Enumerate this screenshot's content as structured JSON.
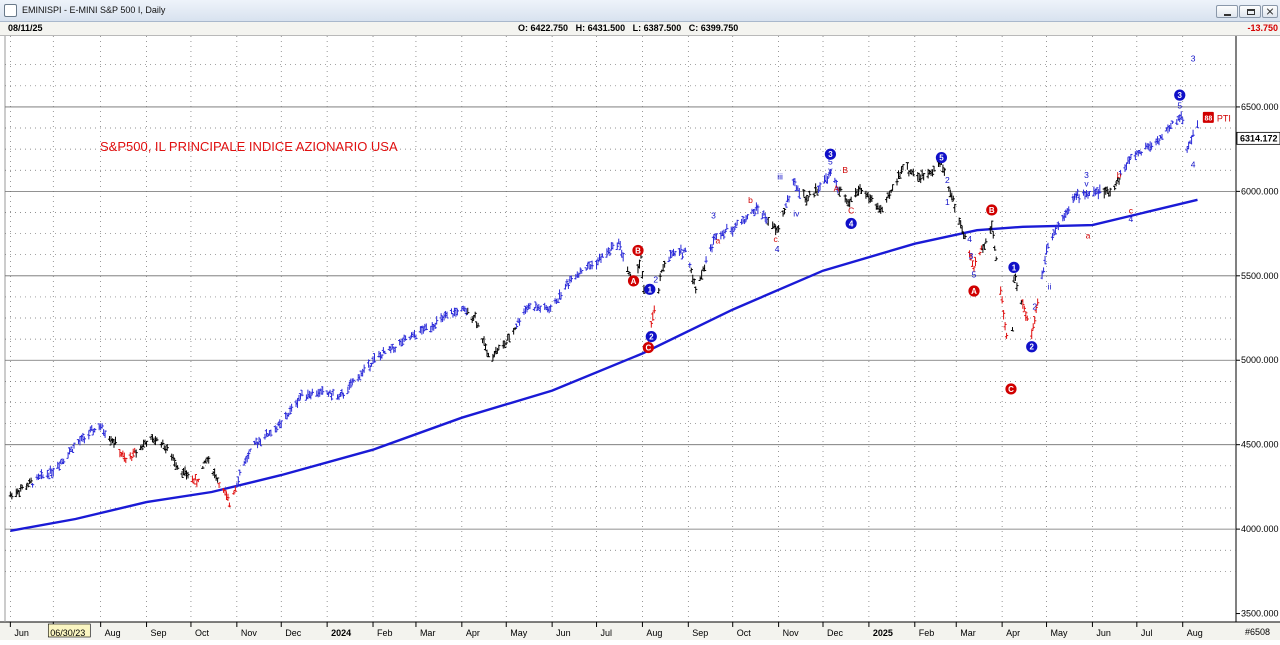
{
  "window": {
    "title": "EMINISPI - E-MINI S&P 500 I, Daily",
    "info": {
      "date": "08/11/25",
      "open_label": "O:",
      "open": "6422.750",
      "high_label": "H:",
      "high": "6431.500",
      "low_label": "L:",
      "low": "6387.500",
      "close_label": "C:",
      "close": "6399.750",
      "change": "-13.750"
    }
  },
  "chart_data": {
    "type": "ohlc-bar",
    "title": "S&P500, IL PRINCIPALE INDICE AZIONARIO USA",
    "ylim": [
      3450,
      6920
    ],
    "yticks": [
      {
        "value": 3500,
        "label": "3500.000"
      },
      {
        "value": 4000,
        "label": "4000.000"
      },
      {
        "value": 4500,
        "label": "4500.000"
      },
      {
        "value": 5000,
        "label": "5000.000"
      },
      {
        "value": 5500,
        "label": "5500.000"
      },
      {
        "value": 6000,
        "label": "6000.000"
      },
      {
        "value": 6500,
        "label": "6500.000"
      }
    ],
    "current_price": {
      "value": 6314,
      "label": "6314.172"
    },
    "bottom_right_label": "#6508",
    "xticks": [
      {
        "label": "Jun",
        "date": "2023-06-01"
      },
      {
        "label": "06/30/23",
        "date": "2023-06-30",
        "boxed": true
      },
      {
        "label": "Aug",
        "date": "2023-08-01"
      },
      {
        "label": "Sep",
        "date": "2023-09-01"
      },
      {
        "label": "Oct",
        "date": "2023-10-01"
      },
      {
        "label": "Nov",
        "date": "2023-11-01"
      },
      {
        "label": "Dec",
        "date": "2023-12-01"
      },
      {
        "label": "2024",
        "date": "2024-01-01",
        "bold": true
      },
      {
        "label": "Feb",
        "date": "2024-02-01"
      },
      {
        "label": "Mar",
        "date": "2024-03-01"
      },
      {
        "label": "Apr",
        "date": "2024-04-01"
      },
      {
        "label": "May",
        "date": "2024-05-01"
      },
      {
        "label": "Jun",
        "date": "2024-06-01"
      },
      {
        "label": "Jul",
        "date": "2024-07-01"
      },
      {
        "label": "Aug",
        "date": "2024-08-01"
      },
      {
        "label": "Sep",
        "date": "2024-09-01"
      },
      {
        "label": "Oct",
        "date": "2024-10-01"
      },
      {
        "label": "Nov",
        "date": "2024-11-01"
      },
      {
        "label": "Dec",
        "date": "2024-12-01"
      },
      {
        "label": "2025",
        "date": "2025-01-01",
        "bold": true
      },
      {
        "label": "Feb",
        "date": "2025-02-01"
      },
      {
        "label": "Mar",
        "date": "2025-03-01"
      },
      {
        "label": "Apr",
        "date": "2025-04-01"
      },
      {
        "label": "May",
        "date": "2025-05-01"
      },
      {
        "label": "Jun",
        "date": "2025-06-01"
      },
      {
        "label": "Jul",
        "date": "2025-07-01"
      },
      {
        "label": "Aug",
        "date": "2025-08-01"
      }
    ],
    "price_path": [
      [
        "2023-06-01",
        4200,
        "black"
      ],
      [
        "2023-06-30",
        4350,
        "blue"
      ],
      [
        "2023-07-15",
        4500,
        "blue"
      ],
      [
        "2023-07-31",
        4610,
        "blue"
      ],
      [
        "2023-08-10",
        4520,
        "black"
      ],
      [
        "2023-08-18",
        4400,
        "red"
      ],
      [
        "2023-09-01",
        4520,
        "black"
      ],
      [
        "2023-09-10",
        4530,
        "black"
      ],
      [
        "2023-09-25",
        4340,
        "black"
      ],
      [
        "2023-10-05",
        4280,
        "red"
      ],
      [
        "2023-10-12",
        4420,
        "black"
      ],
      [
        "2023-10-27",
        4150,
        "red"
      ],
      [
        "2023-11-05",
        4380,
        "blue"
      ],
      [
        "2023-11-15",
        4520,
        "blue"
      ],
      [
        "2023-12-01",
        4620,
        "blue"
      ],
      [
        "2023-12-15",
        4800,
        "blue"
      ],
      [
        "2023-12-31",
        4810,
        "blue"
      ],
      [
        "2024-01-10",
        4780,
        "blue"
      ],
      [
        "2024-02-01",
        5000,
        "blue"
      ],
      [
        "2024-02-20",
        5100,
        "blue"
      ],
      [
        "2024-03-10",
        5200,
        "blue"
      ],
      [
        "2024-03-31",
        5300,
        "blue"
      ],
      [
        "2024-04-10",
        5260,
        "black"
      ],
      [
        "2024-04-19",
        5020,
        "black"
      ],
      [
        "2024-05-01",
        5100,
        "black"
      ],
      [
        "2024-05-15",
        5320,
        "blue"
      ],
      [
        "2024-05-31",
        5300,
        "blue"
      ],
      [
        "2024-06-15",
        5500,
        "blue"
      ],
      [
        "2024-07-01",
        5580,
        "blue"
      ],
      [
        "2024-07-16",
        5700,
        "blue"
      ],
      [
        "2024-07-25",
        5450,
        "black"
      ],
      [
        "2024-07-31",
        5600,
        "black"
      ],
      [
        "2024-08-05",
        5110,
        "red"
      ],
      [
        "2024-08-15",
        5560,
        "black"
      ],
      [
        "2024-08-20",
        5620,
        "blue"
      ],
      [
        "2024-08-31",
        5650,
        "blue"
      ],
      [
        "2024-09-06",
        5420,
        "black"
      ],
      [
        "2024-09-20",
        5750,
        "blue"
      ],
      [
        "2024-10-01",
        5780,
        "blue"
      ],
      [
        "2024-10-18",
        5900,
        "blue"
      ],
      [
        "2024-10-31",
        5760,
        "black"
      ],
      [
        "2024-11-11",
        6050,
        "blue"
      ],
      [
        "2024-11-20",
        5950,
        "black"
      ],
      [
        "2024-12-06",
        6100,
        "blue"
      ],
      [
        "2024-12-18",
        5920,
        "black"
      ],
      [
        "2024-12-26",
        6020,
        "black"
      ],
      [
        "2025-01-10",
        5880,
        "black"
      ],
      [
        "2025-01-24",
        6150,
        "black"
      ],
      [
        "2025-02-05",
        6080,
        "black"
      ],
      [
        "2025-02-19",
        6170,
        "black"
      ],
      [
        "2025-03-04",
        5800,
        "black"
      ],
      [
        "2025-03-13",
        5550,
        "red"
      ],
      [
        "2025-03-25",
        5800,
        "black"
      ],
      [
        "2025-04-04",
        5150,
        "red"
      ],
      [
        "2025-04-07",
        4850,
        "red"
      ],
      [
        "2025-04-09",
        5500,
        "black"
      ],
      [
        "2025-04-21",
        5150,
        "red"
      ],
      [
        "2025-05-02",
        5700,
        "blue"
      ],
      [
        "2025-05-20",
        5970,
        "blue"
      ],
      [
        "2025-06-05",
        6000,
        "blue"
      ],
      [
        "2025-06-13",
        5990,
        "black"
      ],
      [
        "2025-06-27",
        6200,
        "blue"
      ],
      [
        "2025-07-15",
        6300,
        "blue"
      ],
      [
        "2025-07-31",
        6450,
        "blue"
      ],
      [
        "2025-08-04",
        6250,
        "blue"
      ],
      [
        "2025-08-11",
        6410,
        "blue"
      ]
    ],
    "moving_average": [
      [
        "2023-06-01",
        3990
      ],
      [
        "2023-07-15",
        4060
      ],
      [
        "2023-09-01",
        4160
      ],
      [
        "2023-10-15",
        4220
      ],
      [
        "2023-12-01",
        4320
      ],
      [
        "2024-02-01",
        4470
      ],
      [
        "2024-04-01",
        4660
      ],
      [
        "2024-06-01",
        4820
      ],
      [
        "2024-08-01",
        5040
      ],
      [
        "2024-10-01",
        5300
      ],
      [
        "2024-12-01",
        5530
      ],
      [
        "2025-02-01",
        5690
      ],
      [
        "2025-03-15",
        5770
      ],
      [
        "2025-04-15",
        5790
      ],
      [
        "2025-06-01",
        5800
      ],
      [
        "2025-08-11",
        5950
      ]
    ],
    "wave_markers": [
      {
        "label": "B",
        "date": "2024-07-29",
        "value": 5650,
        "kind": "red-circle"
      },
      {
        "label": "A",
        "date": "2024-07-26",
        "value": 5470,
        "kind": "red-circle"
      },
      {
        "label": "C",
        "date": "2024-08-05",
        "value": 5075,
        "kind": "red-circle"
      },
      {
        "label": "1",
        "date": "2024-08-06",
        "value": 5420,
        "kind": "blue-circle"
      },
      {
        "label": "2",
        "date": "2024-08-07",
        "value": 5140,
        "kind": "blue-circle"
      },
      {
        "label": "3",
        "date": "2024-12-06",
        "value": 6220,
        "kind": "blue-circle"
      },
      {
        "label": "4",
        "date": "2024-12-20",
        "value": 5810,
        "kind": "blue-circle"
      },
      {
        "label": "5",
        "date": "2025-02-19",
        "value": 6200,
        "kind": "blue-circle"
      },
      {
        "label": "B",
        "date": "2025-03-25",
        "value": 5890,
        "kind": "red-circle"
      },
      {
        "label": "A",
        "date": "2025-03-13",
        "value": 5410,
        "kind": "red-circle"
      },
      {
        "label": "C",
        "date": "2025-04-07",
        "value": 4830,
        "kind": "red-circle"
      },
      {
        "label": "1",
        "date": "2025-04-09",
        "value": 5550,
        "kind": "blue-circle"
      },
      {
        "label": "2",
        "date": "2025-04-21",
        "value": 5080,
        "kind": "blue-circle"
      },
      {
        "label": "3",
        "date": "2025-07-30",
        "value": 6570,
        "kind": "blue-circle"
      }
    ],
    "wave_labels": [
      {
        "label": "3",
        "date": "2024-09-18",
        "value": 5840,
        "color": "blue"
      },
      {
        "label": "a",
        "date": "2024-09-21",
        "value": 5690,
        "color": "red"
      },
      {
        "label": "b",
        "date": "2024-10-13",
        "value": 5930,
        "color": "red"
      },
      {
        "label": "c",
        "date": "2024-10-30",
        "value": 5700,
        "color": "red"
      },
      {
        "label": "4",
        "date": "2024-10-31",
        "value": 5640,
        "color": "blue"
      },
      {
        "label": "iii",
        "date": "2024-11-02",
        "value": 6070,
        "color": "blue"
      },
      {
        "label": "iv",
        "date": "2024-11-13",
        "value": 5850,
        "color": "blue"
      },
      {
        "label": "5",
        "date": "2024-12-06",
        "value": 6160,
        "color": "blue"
      },
      {
        "label": "v",
        "date": "2024-12-06",
        "value": 6110,
        "color": "blue"
      },
      {
        "label": "A",
        "date": "2024-12-10",
        "value": 6000,
        "color": "red"
      },
      {
        "label": "B",
        "date": "2024-12-16",
        "value": 6110,
        "color": "red"
      },
      {
        "label": "C",
        "date": "2024-12-20",
        "value": 5870,
        "color": "red"
      },
      {
        "label": "2",
        "date": "2024-08-10",
        "value": 5460,
        "color": "blue"
      },
      {
        "label": "2",
        "date": "2025-02-23",
        "value": 6050,
        "color": "blue"
      },
      {
        "label": "1",
        "date": "2025-02-23",
        "value": 5920,
        "color": "blue"
      },
      {
        "label": "4",
        "date": "2025-03-10",
        "value": 5700,
        "color": "blue"
      },
      {
        "label": "3",
        "date": "2025-03-11",
        "value": 5600,
        "color": "blue"
      },
      {
        "label": "5",
        "date": "2025-03-13",
        "value": 5490,
        "color": "blue"
      },
      {
        "label": "2",
        "date": "2025-04-23",
        "value": 5300,
        "color": "blue"
      },
      {
        "label": "ii",
        "date": "2025-05-03",
        "value": 5420,
        "color": "blue"
      },
      {
        "label": "iii",
        "date": "2025-05-20",
        "value": 5950,
        "color": "blue"
      },
      {
        "label": "3",
        "date": "2025-05-28",
        "value": 6080,
        "color": "blue"
      },
      {
        "label": "v",
        "date": "2025-05-28",
        "value": 6030,
        "color": "blue"
      },
      {
        "label": "a",
        "date": "2025-05-29",
        "value": 5720,
        "color": "red"
      },
      {
        "label": "b",
        "date": "2025-06-19",
        "value": 6080,
        "color": "red"
      },
      {
        "label": "c",
        "date": "2025-06-27",
        "value": 5870,
        "color": "red"
      },
      {
        "label": "4",
        "date": "2025-06-27",
        "value": 5820,
        "color": "blue"
      },
      {
        "label": "5",
        "date": "2025-07-30",
        "value": 6490,
        "color": "blue"
      },
      {
        "label": "3",
        "date": "2025-08-08",
        "value": 6770,
        "color": "blue"
      },
      {
        "label": "4",
        "date": "2025-08-08",
        "value": 6140,
        "color": "blue"
      }
    ],
    "pti": {
      "badge": "88",
      "label": "PTI",
      "date": "2025-08-20",
      "value": 6435
    },
    "colors": {
      "up": "#2b2bd8",
      "neutral": "#000000",
      "down": "#e01010",
      "moving_average": "#1a1ad6",
      "marker_blue": "#1010c8",
      "marker_red": "#d00000",
      "title": "#e01010",
      "grid": "#6e6e6e"
    }
  }
}
